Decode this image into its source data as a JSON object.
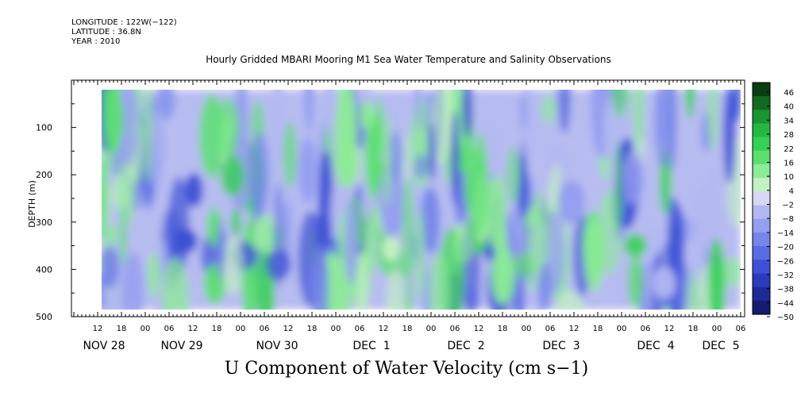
{
  "meta": {
    "longitude": "LONGITUDE : 122W(−122)",
    "latitude": "LATITUDE : 36.8N",
    "year": "YEAR : 2010"
  },
  "chart_data": {
    "type": "heatmap",
    "title": "Hourly Gridded MBARI Mooring M1 Sea Water Temperature and Salinity Observations",
    "xlabel": "U Component of Water Velocity (cm s−1)",
    "ylabel": "DEPTH (m)",
    "y_ticks": [
      100,
      200,
      300,
      400,
      500
    ],
    "ylim": [
      500,
      0
    ],
    "y_reversed": true,
    "x_hour_ticks": [
      "12",
      "18",
      "00",
      "06",
      "12",
      "18",
      "00",
      "06",
      "12",
      "18",
      "00",
      "06",
      "12",
      "18",
      "00",
      "06",
      "12",
      "18",
      "00",
      "06",
      "12",
      "18",
      "00",
      "06",
      "12",
      "18",
      "00",
      "06"
    ],
    "x_day_labels": [
      "NOV 28",
      "NOV 29",
      "NOV 30",
      "DEC  1",
      "DEC  2",
      "DEC  3",
      "DEC  4",
      "DEC  5"
    ],
    "colorbar_ticks": [
      "46",
      "40",
      "34",
      "28",
      "22",
      "16",
      "10",
      "4",
      "−2",
      "−8",
      "−14",
      "−20",
      "−26",
      "−32",
      "−38",
      "−44",
      "−50"
    ],
    "colorbar_colors": [
      "#0a3d12",
      "#126a22",
      "#1a9331",
      "#24b843",
      "#35d056",
      "#5be070",
      "#8ceb96",
      "#c3f1c2",
      "#d7d8f5",
      "#b3b8f2",
      "#959ef0",
      "#7585ea",
      "#5a6ce4",
      "#3e51d6",
      "#2b3bbb",
      "#1e2a96",
      "#141c70"
    ],
    "pattern": "alternating vertical bands of weak positive (green) and negative (blue) U velocity across depth 20-490 m, Nov 28 - Dec 5"
  }
}
